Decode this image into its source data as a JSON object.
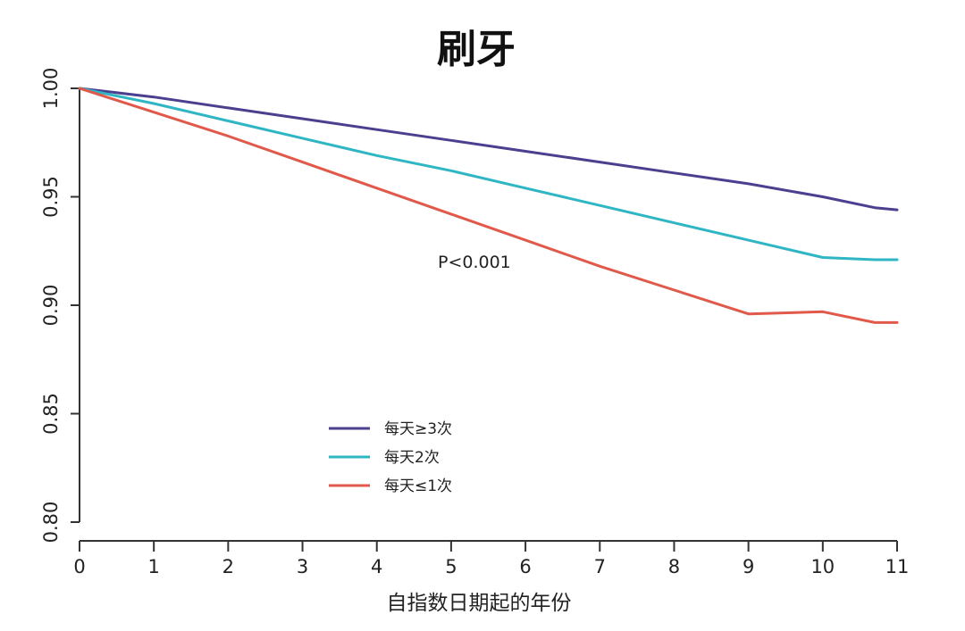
{
  "chart_data": {
    "type": "line",
    "title": "刷牙",
    "xlabel": "自指数日期起的年份",
    "ylabel": "",
    "xlim": [
      0,
      11
    ],
    "ylim": [
      0.8,
      1.0
    ],
    "x_ticks": [
      "0",
      "1",
      "2",
      "3",
      "4",
      "5",
      "6",
      "7",
      "8",
      "9",
      "10",
      "11"
    ],
    "y_ticks": [
      "0.80",
      "0.85",
      "0.90",
      "0.95",
      "1.00"
    ],
    "annotation": "P<0.001",
    "legend_position": "lower-center",
    "grid": false,
    "x": [
      0,
      1,
      2,
      3,
      4,
      5,
      6,
      7,
      8,
      9,
      10,
      10.7,
      11
    ],
    "series": [
      {
        "name": "每天≥3次",
        "color": "#4b3f8f",
        "values": [
          1.0,
          0.996,
          0.991,
          0.986,
          0.981,
          0.976,
          0.971,
          0.966,
          0.961,
          0.956,
          0.95,
          0.945,
          0.944
        ]
      },
      {
        "name": "每天2次",
        "color": "#2fb6c4",
        "values": [
          1.0,
          0.993,
          0.985,
          0.977,
          0.969,
          0.962,
          0.954,
          0.946,
          0.938,
          0.93,
          0.922,
          0.921,
          0.921
        ]
      },
      {
        "name": "每天≤1次",
        "color": "#e0594a",
        "values": [
          1.0,
          0.989,
          0.978,
          0.966,
          0.954,
          0.942,
          0.93,
          0.918,
          0.907,
          0.896,
          0.897,
          0.892,
          0.892
        ]
      }
    ]
  }
}
